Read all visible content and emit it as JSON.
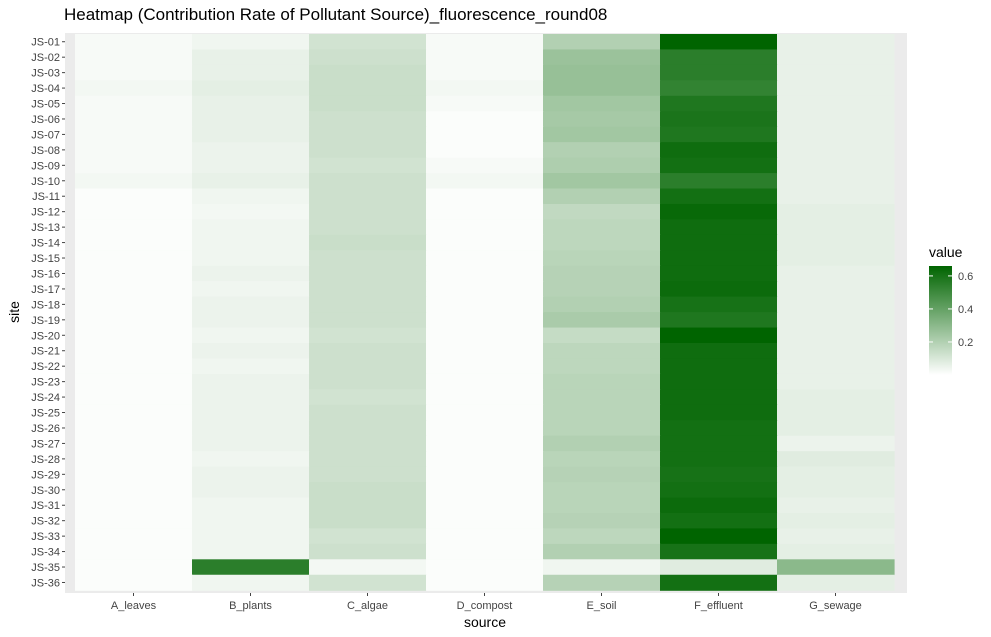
{
  "chart_data": {
    "type": "heatmap",
    "title": "Heatmap (Contribution Rate of Pollutant Source)_fluorescence_round08",
    "xlabel": "source",
    "ylabel": "site",
    "legend_title": "value",
    "legend_ticks": [
      0.2,
      0.4,
      0.6
    ],
    "value_range": [
      0.0,
      0.66
    ],
    "color_low": "#ffffff",
    "color_high": "#006400",
    "x": [
      "A_leaves",
      "B_plants",
      "C_algae",
      "D_compost",
      "E_soil",
      "F_effluent",
      "G_sewage"
    ],
    "y": [
      "JS-01",
      "JS-02",
      "JS-03",
      "JS-04",
      "JS-05",
      "JS-06",
      "JS-07",
      "JS-08",
      "JS-09",
      "JS-10",
      "JS-11",
      "JS-12",
      "JS-13",
      "JS-14",
      "JS-15",
      "JS-16",
      "JS-17",
      "JS-18",
      "JS-19",
      "JS-20",
      "JS-21",
      "JS-22",
      "JS-23",
      "JS-24",
      "JS-25",
      "JS-26",
      "JS-27",
      "JS-28",
      "JS-29",
      "JS-30",
      "JS-31",
      "JS-32",
      "JS-33",
      "JS-34",
      "JS-35",
      "JS-36"
    ],
    "values": [
      [
        0.02,
        0.04,
        0.12,
        0.02,
        0.2,
        0.66,
        0.06
      ],
      [
        0.02,
        0.06,
        0.13,
        0.02,
        0.26,
        0.55,
        0.06
      ],
      [
        0.02,
        0.06,
        0.14,
        0.02,
        0.27,
        0.55,
        0.06
      ],
      [
        0.03,
        0.07,
        0.14,
        0.03,
        0.27,
        0.53,
        0.06
      ],
      [
        0.02,
        0.06,
        0.14,
        0.02,
        0.24,
        0.58,
        0.06
      ],
      [
        0.02,
        0.06,
        0.13,
        0.01,
        0.23,
        0.59,
        0.06
      ],
      [
        0.02,
        0.06,
        0.13,
        0.01,
        0.24,
        0.58,
        0.06
      ],
      [
        0.02,
        0.05,
        0.13,
        0.01,
        0.2,
        0.62,
        0.06
      ],
      [
        0.02,
        0.05,
        0.12,
        0.02,
        0.21,
        0.61,
        0.06
      ],
      [
        0.03,
        0.06,
        0.13,
        0.03,
        0.24,
        0.55,
        0.06
      ],
      [
        0.01,
        0.04,
        0.13,
        0.01,
        0.2,
        0.61,
        0.06
      ],
      [
        0.01,
        0.03,
        0.13,
        0.01,
        0.16,
        0.64,
        0.07
      ],
      [
        0.01,
        0.04,
        0.13,
        0.01,
        0.17,
        0.62,
        0.07
      ],
      [
        0.01,
        0.04,
        0.14,
        0.01,
        0.17,
        0.62,
        0.07
      ],
      [
        0.01,
        0.04,
        0.13,
        0.01,
        0.18,
        0.62,
        0.07
      ],
      [
        0.01,
        0.05,
        0.13,
        0.01,
        0.19,
        0.62,
        0.06
      ],
      [
        0.01,
        0.04,
        0.13,
        0.01,
        0.19,
        0.63,
        0.06
      ],
      [
        0.01,
        0.05,
        0.13,
        0.01,
        0.2,
        0.6,
        0.06
      ],
      [
        0.01,
        0.05,
        0.13,
        0.01,
        0.22,
        0.58,
        0.06
      ],
      [
        0.01,
        0.04,
        0.12,
        0.01,
        0.15,
        0.66,
        0.06
      ],
      [
        0.01,
        0.05,
        0.13,
        0.01,
        0.17,
        0.62,
        0.06
      ],
      [
        0.01,
        0.04,
        0.13,
        0.01,
        0.17,
        0.62,
        0.06
      ],
      [
        0.01,
        0.05,
        0.13,
        0.01,
        0.18,
        0.62,
        0.06
      ],
      [
        0.01,
        0.05,
        0.12,
        0.01,
        0.18,
        0.62,
        0.07
      ],
      [
        0.01,
        0.05,
        0.13,
        0.01,
        0.18,
        0.62,
        0.07
      ],
      [
        0.01,
        0.05,
        0.13,
        0.01,
        0.18,
        0.61,
        0.07
      ],
      [
        0.01,
        0.05,
        0.13,
        0.01,
        0.2,
        0.61,
        0.05
      ],
      [
        0.01,
        0.04,
        0.13,
        0.01,
        0.18,
        0.61,
        0.08
      ],
      [
        0.01,
        0.05,
        0.13,
        0.01,
        0.19,
        0.6,
        0.07
      ],
      [
        0.01,
        0.05,
        0.14,
        0.01,
        0.18,
        0.61,
        0.07
      ],
      [
        0.01,
        0.04,
        0.14,
        0.01,
        0.18,
        0.63,
        0.06
      ],
      [
        0.01,
        0.04,
        0.14,
        0.01,
        0.19,
        0.61,
        0.07
      ],
      [
        0.01,
        0.04,
        0.12,
        0.01,
        0.17,
        0.66,
        0.06
      ],
      [
        0.01,
        0.04,
        0.13,
        0.01,
        0.2,
        0.6,
        0.07
      ],
      [
        0.01,
        0.55,
        0.03,
        0.01,
        0.04,
        0.08,
        0.3
      ],
      [
        0.01,
        0.04,
        0.12,
        0.01,
        0.19,
        0.61,
        0.07
      ]
    ]
  }
}
